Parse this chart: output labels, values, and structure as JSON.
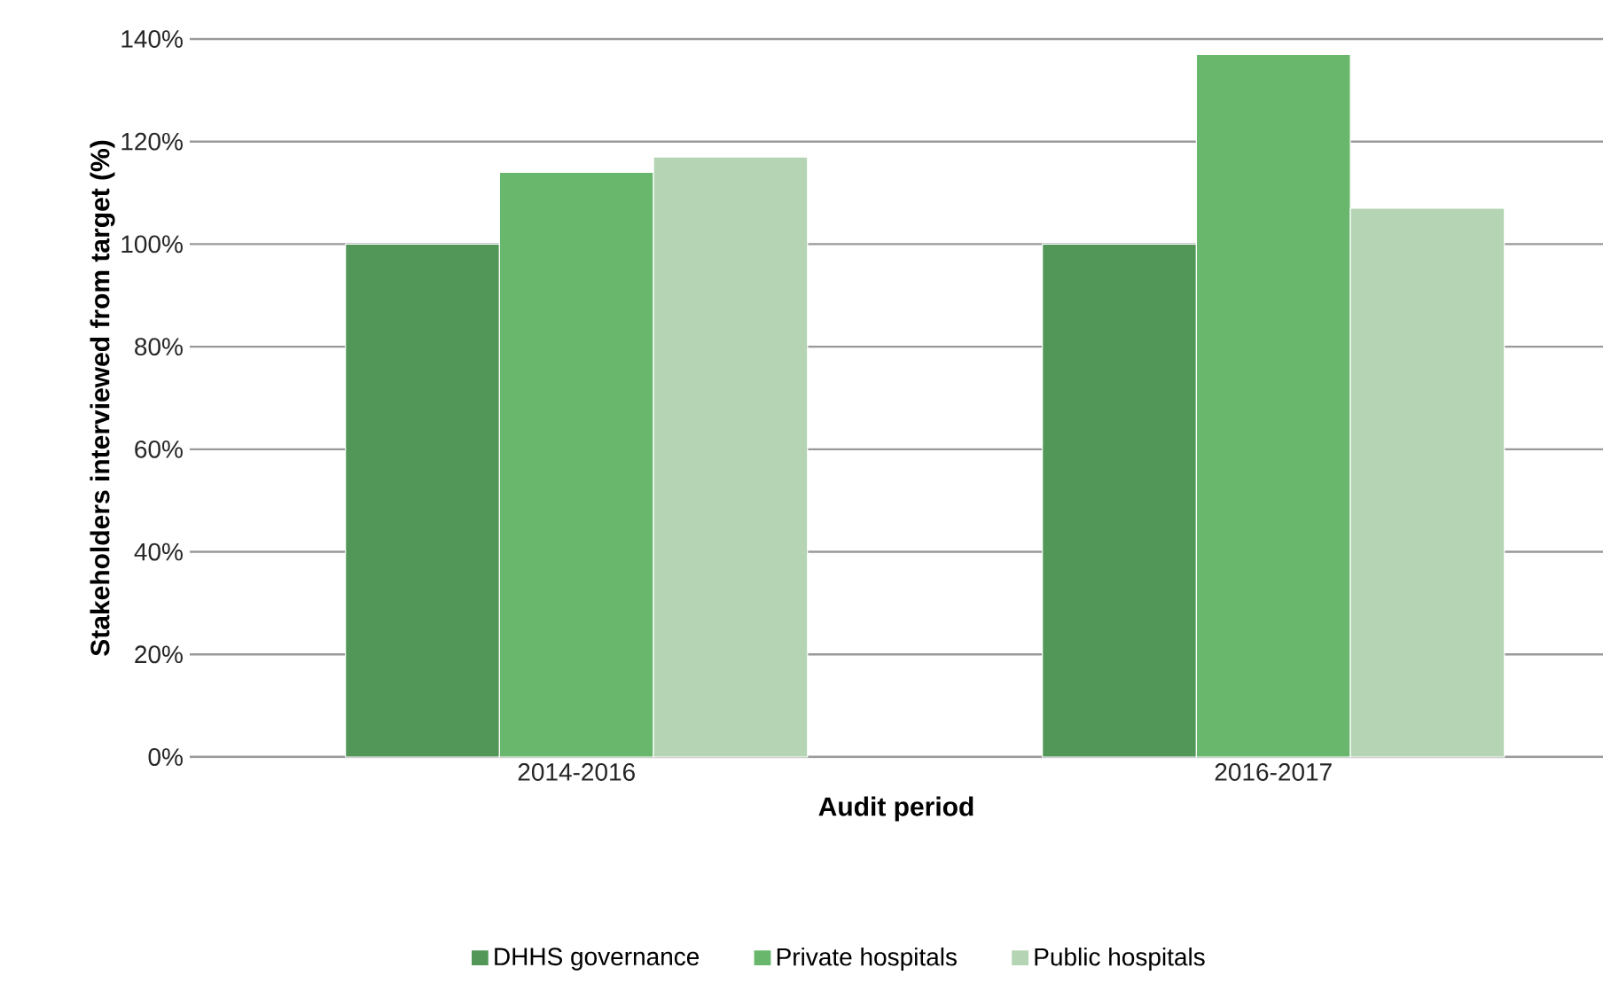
{
  "chart_data": {
    "type": "bar",
    "xlabel": "Audit period",
    "ylabel": "Stakeholders interviewed from target (%)",
    "categories": [
      "2014-2016",
      "2016-2017"
    ],
    "series": [
      {
        "name": "DHHS governance",
        "color": "#529757",
        "values": [
          100,
          100
        ]
      },
      {
        "name": "Private hospitals",
        "color": "#69b76d",
        "values": [
          114,
          137
        ]
      },
      {
        "name": "Public hospitals",
        "color": "#b4d4b3",
        "values": [
          117,
          107
        ]
      }
    ],
    "ylim": [
      0,
      140
    ],
    "yticks": [
      {
        "value": 0,
        "label": "0%"
      },
      {
        "value": 20,
        "label": "20%"
      },
      {
        "value": 40,
        "label": "40%"
      },
      {
        "value": 60,
        "label": "60%"
      },
      {
        "value": 80,
        "label": "80%"
      },
      {
        "value": 100,
        "label": "100%"
      },
      {
        "value": 120,
        "label": "120%"
      },
      {
        "value": 140,
        "label": "140%"
      }
    ],
    "grid": "y",
    "legend": "bottom"
  }
}
